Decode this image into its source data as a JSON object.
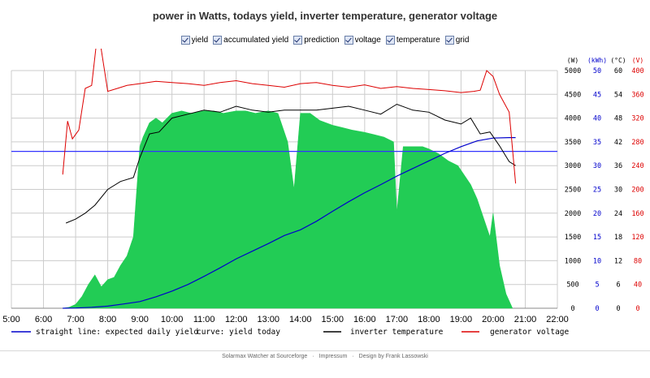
{
  "title": "power in Watts, todays yield, inverter temperature, generator voltage",
  "checkboxes": [
    {
      "label": "yield",
      "checked": true
    },
    {
      "label": "accumulated yield",
      "checked": true
    },
    {
      "label": "prediction",
      "checked": true
    },
    {
      "label": "voltage",
      "checked": true
    },
    {
      "label": "temperature",
      "checked": true
    },
    {
      "label": "grid",
      "checked": true
    }
  ],
  "footer": {
    "link1": "Solarmax Watcher at Sourceforge",
    "link2": "Impressum",
    "link3": "Design by Frank Lassowski"
  },
  "colors": {
    "yield_fill": "#22cc55",
    "accumulated": "#0000cc",
    "prediction": "#3333ff",
    "temperature": "#000000",
    "voltage": "#dd0000",
    "grid": "#cccccc"
  },
  "chart_data": {
    "type": "area",
    "x_ticks": [
      "5:00",
      "6:00",
      "7:00",
      "8:00",
      "9:00",
      "10:00",
      "11:00",
      "12:00",
      "13:00",
      "14:00",
      "15:00",
      "16:00",
      "17:00",
      "18:00",
      "19:00",
      "20:00",
      "21:00",
      "22:00"
    ],
    "xlim": [
      5,
      22
    ],
    "axes": [
      {
        "unit": "(W)",
        "ticks": [
          "5000",
          "4500",
          "4000",
          "3500",
          "3000",
          "2500",
          "2000",
          "1500",
          "1000",
          "500",
          "0"
        ],
        "color": "#000000",
        "range": [
          0,
          5000
        ]
      },
      {
        "unit": "(kWh)",
        "ticks": [
          "50",
          "45",
          "40",
          "35",
          "30",
          "25",
          "20",
          "15",
          "10",
          "5",
          "0"
        ],
        "color": "#0000cc",
        "range": [
          0,
          50
        ]
      },
      {
        "unit": "(°C)",
        "ticks": [
          "60",
          "54",
          "48",
          "42",
          "36",
          "30",
          "24",
          "18",
          "12",
          "6",
          "0"
        ],
        "color": "#000000",
        "range": [
          0,
          60
        ]
      },
      {
        "unit": "(V)",
        "ticks": [
          "400",
          "360",
          "320",
          "280",
          "240",
          "200",
          "160",
          "120",
          "80",
          "40",
          "0"
        ],
        "color": "#dd0000",
        "range": [
          0,
          400
        ]
      }
    ],
    "legend": [
      {
        "label": "straight line: expected daily yield",
        "color": "#0000cc"
      },
      {
        "label": "curve: yield today",
        "color": "#0000cc"
      },
      {
        "label": "inverter temperature",
        "color": "#000000"
      },
      {
        "label": "generator voltage",
        "color": "#dd0000"
      }
    ],
    "series": [
      {
        "name": "yield",
        "unit": "W",
        "x": [
          6.6,
          6.8,
          7.0,
          7.2,
          7.4,
          7.6,
          7.8,
          8.0,
          8.2,
          8.4,
          8.6,
          8.8,
          9.0,
          9.1,
          9.3,
          9.5,
          9.7,
          10.0,
          10.3,
          10.6,
          11.0,
          11.3,
          11.6,
          12.0,
          12.3,
          12.6,
          13.0,
          13.3,
          13.6,
          13.8,
          14.0,
          14.3,
          14.6,
          15.0,
          15.3,
          15.6,
          16.0,
          16.3,
          16.6,
          16.9,
          17.0,
          17.2,
          17.5,
          17.8,
          18.0,
          18.3,
          18.6,
          18.9,
          19.1,
          19.3,
          19.5,
          19.7,
          19.9,
          20.0,
          20.2,
          20.4,
          20.6
        ],
        "values": [
          0,
          20,
          80,
          250,
          500,
          700,
          450,
          600,
          650,
          900,
          1100,
          1500,
          3400,
          3600,
          3900,
          4000,
          3900,
          4100,
          4150,
          4100,
          4150,
          4150,
          4100,
          4150,
          4150,
          4100,
          4150,
          4100,
          3500,
          2500,
          4100,
          4100,
          3950,
          3850,
          3800,
          3750,
          3700,
          3650,
          3600,
          3500,
          2000,
          3400,
          3400,
          3400,
          3350,
          3250,
          3100,
          3000,
          2800,
          2600,
          2300,
          1900,
          1500,
          2000,
          900,
          300,
          0
        ]
      },
      {
        "name": "accumulated yield",
        "unit": "kWh",
        "x": [
          6.6,
          7.0,
          7.5,
          8.0,
          8.5,
          9.0,
          9.5,
          10.0,
          10.5,
          11.0,
          11.5,
          12.0,
          12.5,
          13.0,
          13.5,
          14.0,
          14.5,
          15.0,
          15.5,
          16.0,
          16.5,
          17.0,
          17.5,
          18.0,
          18.5,
          19.0,
          19.5,
          20.0,
          20.5,
          20.7
        ],
        "values": [
          0,
          0.05,
          0.2,
          0.45,
          0.9,
          1.4,
          2.4,
          3.6,
          5.0,
          6.7,
          8.5,
          10.4,
          12.0,
          13.6,
          15.3,
          16.5,
          18.3,
          20.4,
          22.4,
          24.3,
          26.0,
          27.8,
          29.4,
          31.0,
          32.6,
          34.0,
          35.2,
          35.8,
          35.9,
          35.9
        ]
      },
      {
        "name": "expected daily yield",
        "unit": "kWh",
        "x": [
          5,
          22
        ],
        "values": [
          33.0,
          33.0
        ]
      },
      {
        "name": "inverter temperature",
        "unit": "°C",
        "x": [
          6.7,
          7.0,
          7.3,
          7.6,
          8.0,
          8.4,
          8.8,
          9.0,
          9.3,
          9.6,
          10.0,
          10.5,
          11.0,
          11.5,
          12.0,
          12.5,
          13.0,
          13.5,
          14.0,
          14.5,
          15.0,
          15.5,
          16.0,
          16.5,
          17.0,
          17.5,
          18.0,
          18.5,
          19.0,
          19.3,
          19.6,
          19.9,
          20.2,
          20.5,
          20.7
        ],
        "values": [
          21.5,
          22.5,
          24,
          26,
          30,
          32,
          33,
          38,
          44,
          44.5,
          48,
          49,
          50,
          49.5,
          51,
          50,
          49.5,
          50,
          50,
          50,
          50.5,
          51,
          50,
          49,
          51.5,
          50,
          49.5,
          47.5,
          46.5,
          48,
          44,
          44.5,
          41,
          37,
          36
        ]
      },
      {
        "name": "generator voltage",
        "unit": "V",
        "x": [
          6.6,
          6.75,
          6.9,
          7.1,
          7.3,
          7.5,
          7.7,
          8.0,
          8.3,
          8.6,
          9.0,
          9.5,
          10.0,
          10.5,
          11.0,
          11.5,
          12.0,
          12.5,
          13.0,
          13.5,
          14.0,
          14.5,
          15.0,
          15.5,
          16.0,
          16.5,
          17.0,
          17.5,
          18.0,
          18.5,
          19.0,
          19.4,
          19.6,
          19.8,
          20.0,
          20.2,
          20.5,
          20.7
        ],
        "values": [
          225,
          315,
          285,
          300,
          370,
          375,
          470,
          365,
          370,
          375,
          378,
          382,
          380,
          378,
          375,
          380,
          383,
          378,
          375,
          372,
          378,
          380,
          375,
          372,
          376,
          370,
          373,
          370,
          368,
          366,
          363,
          365,
          367,
          400,
          390,
          360,
          330,
          210
        ]
      }
    ]
  }
}
